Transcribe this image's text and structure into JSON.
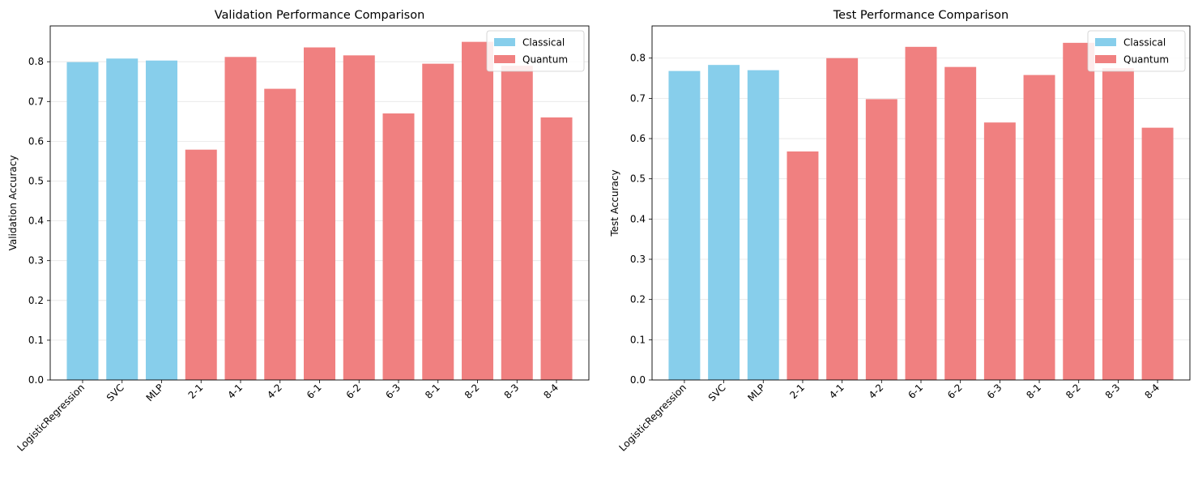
{
  "chart_data": [
    {
      "type": "bar",
      "title": "Validation Performance Comparison",
      "xlabel": "",
      "ylabel": "Validation Accuracy",
      "ylim": [
        0,
        0.89
      ],
      "yticks": [
        "0.0",
        "0.1",
        "0.2",
        "0.3",
        "0.4",
        "0.5",
        "0.6",
        "0.7",
        "0.8"
      ],
      "grid": "y",
      "legend_position": "top-right",
      "legend": [
        "Classical",
        "Quantum"
      ],
      "categories": [
        "LogisticRegression",
        "SVC",
        "MLP",
        "2-1",
        "4-1",
        "4-2",
        "6-1",
        "6-2",
        "6-3",
        "8-1",
        "8-2",
        "8-3",
        "8-4"
      ],
      "groups": [
        "Classical",
        "Classical",
        "Classical",
        "Quantum",
        "Quantum",
        "Quantum",
        "Quantum",
        "Quantum",
        "Quantum",
        "Quantum",
        "Quantum",
        "Quantum",
        "Quantum"
      ],
      "values": [
        0.799,
        0.808,
        0.803,
        0.579,
        0.812,
        0.732,
        0.836,
        0.816,
        0.67,
        0.795,
        0.85,
        0.79,
        0.66
      ]
    },
    {
      "type": "bar",
      "title": "Test Performance Comparison",
      "xlabel": "",
      "ylabel": "Test Accuracy",
      "ylim": [
        0,
        0.88
      ],
      "yticks": [
        "0.0",
        "0.1",
        "0.2",
        "0.3",
        "0.4",
        "0.5",
        "0.6",
        "0.7",
        "0.8"
      ],
      "grid": "y",
      "legend_position": "top-right",
      "legend": [
        "Classical",
        "Quantum"
      ],
      "categories": [
        "LogisticRegression",
        "SVC",
        "MLP",
        "2-1",
        "4-1",
        "4-2",
        "6-1",
        "6-2",
        "6-3",
        "8-1",
        "8-2",
        "8-3",
        "8-4"
      ],
      "groups": [
        "Classical",
        "Classical",
        "Classical",
        "Quantum",
        "Quantum",
        "Quantum",
        "Quantum",
        "Quantum",
        "Quantum",
        "Quantum",
        "Quantum",
        "Quantum",
        "Quantum"
      ],
      "values": [
        0.768,
        0.783,
        0.77,
        0.568,
        0.8,
        0.698,
        0.828,
        0.778,
        0.64,
        0.758,
        0.838,
        0.775,
        0.627
      ]
    }
  ],
  "colors": {
    "Classical": "#87ceeb",
    "Quantum": "#f08080",
    "grid": "#e6e6e6",
    "axis": "#000000"
  }
}
